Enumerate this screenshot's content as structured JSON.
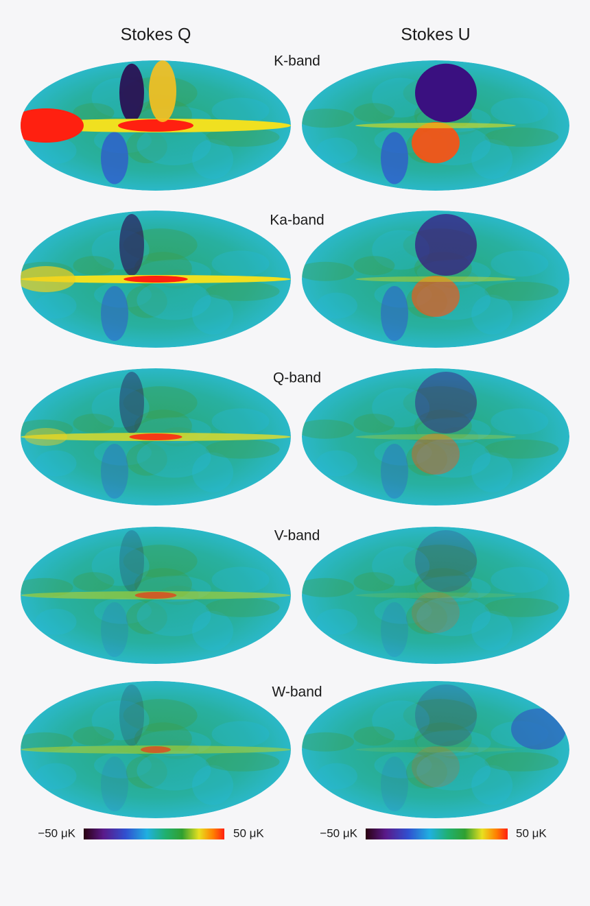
{
  "columns": [
    "Stokes Q",
    "Stokes U"
  ],
  "bands": [
    "K-band",
    "Ka-band",
    "Q-band",
    "V-band",
    "W-band"
  ],
  "colorbars": [
    {
      "min_label": "−50 μK",
      "max_label": "50 μK"
    },
    {
      "min_label": "−50 μK",
      "max_label": "50 μK"
    }
  ]
}
